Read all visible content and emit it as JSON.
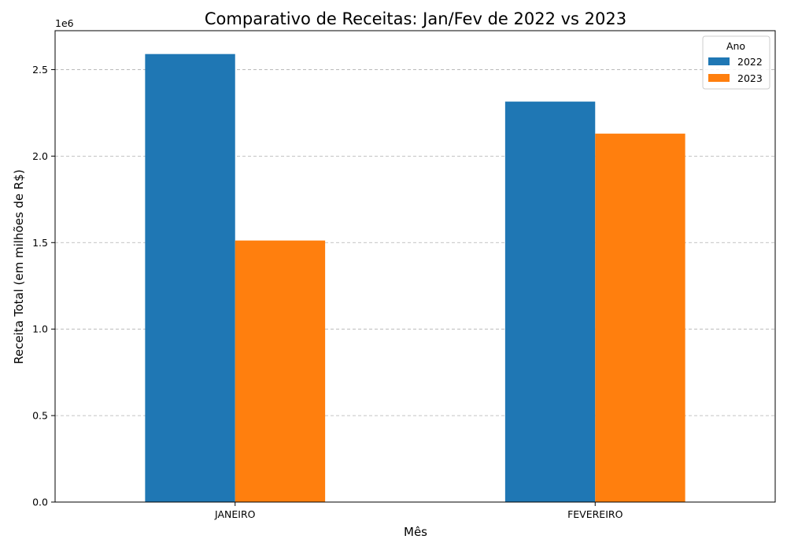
{
  "chart_data": {
    "type": "bar",
    "title": "Comparativo de Receitas: Jan/Fev de 2022 vs 2023",
    "xlabel": "Mês",
    "ylabel": "Receita Total (em milhões de R$)",
    "y_offset_label": "1e6",
    "categories": [
      "JANEIRO",
      "FEVEREIRO"
    ],
    "series": [
      {
        "name": "2022",
        "color": "#1f77b4",
        "values": [
          2590000,
          2315000
        ]
      },
      {
        "name": "2023",
        "color": "#ff7f0e",
        "values": [
          1512000,
          2130000
        ]
      }
    ],
    "ylim": [
      0,
      2725000
    ],
    "yticks": [
      0,
      500000,
      1000000,
      1500000,
      2000000,
      2500000
    ],
    "ytick_labels": [
      "0.0",
      "0.5",
      "1.0",
      "1.5",
      "2.0",
      "2.5"
    ],
    "grid": "y-dashed",
    "legend": {
      "title": "Ano",
      "placement": "top-right"
    }
  }
}
